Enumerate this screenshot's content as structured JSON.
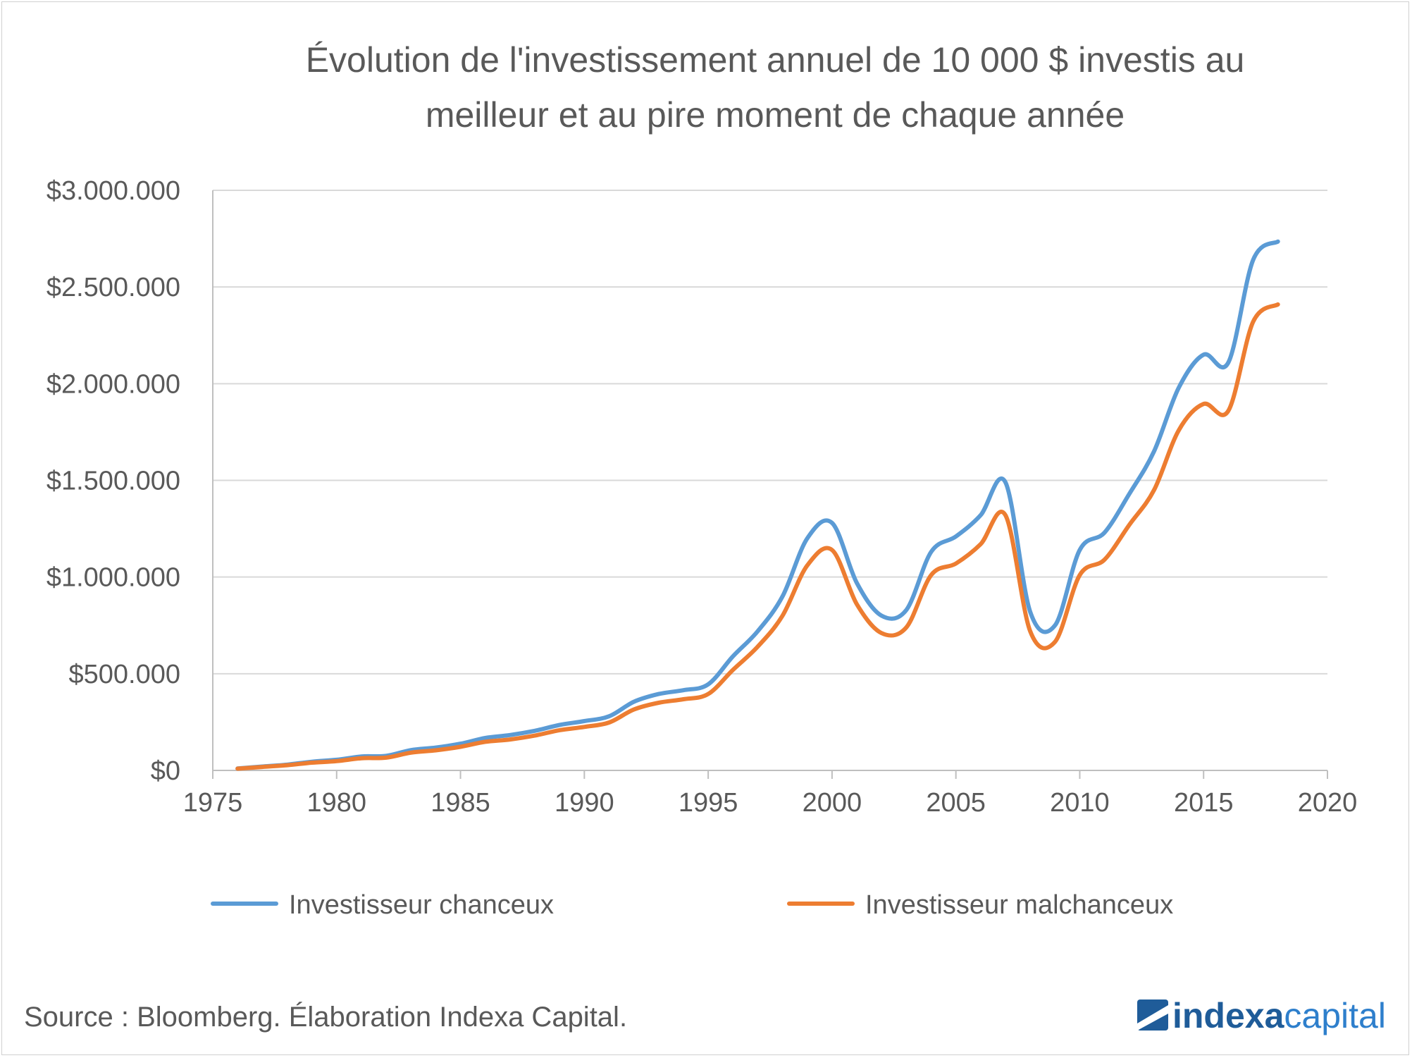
{
  "chart_data": {
    "type": "line",
    "title": "Évolution de l'investissement annuel de 10 000 $ investis au meilleur et au pire moment de chaque année",
    "title_lines": [
      "Évolution de l'investissement annuel de 10 000 $ investis au",
      "meilleur et au pire moment de chaque année"
    ],
    "xlabel": "",
    "ylabel": "",
    "xlim": [
      1975,
      2020
    ],
    "ylim": [
      0,
      3000000
    ],
    "x_ticks": [
      1975,
      1980,
      1985,
      1990,
      1995,
      2000,
      2005,
      2010,
      2015,
      2020
    ],
    "y_ticks": [
      0,
      500000,
      1000000,
      1500000,
      2000000,
      2500000,
      3000000
    ],
    "y_tick_labels": [
      "$0",
      "$500.000",
      "$1.000.000",
      "$1.500.000",
      "$2.000.000",
      "$2.500.000",
      "$3.000.000"
    ],
    "x_tick_labels": [
      "1975",
      "1980",
      "1985",
      "1990",
      "1995",
      "2000",
      "2005",
      "2010",
      "2015",
      "2020"
    ],
    "grid": true,
    "legend_position": "bottom",
    "series": [
      {
        "name": "Investisseur chanceux",
        "color": "#5B9BD5",
        "x": [
          1976,
          1977,
          1978,
          1979,
          1980,
          1981,
          1982,
          1983,
          1984,
          1985,
          1986,
          1987,
          1988,
          1989,
          1990,
          1991,
          1992,
          1993,
          1994,
          1995,
          1996,
          1997,
          1998,
          1999,
          2000,
          2001,
          2002,
          2003,
          2004,
          2005,
          2006,
          2007,
          2008,
          2009,
          2010,
          2011,
          2012,
          2013,
          2014,
          2015,
          2016,
          2017,
          2018
        ],
        "values": [
          10000,
          20000,
          30000,
          45000,
          55000,
          72000,
          75000,
          105000,
          118000,
          138000,
          168000,
          183000,
          205000,
          235000,
          255000,
          280000,
          355000,
          395000,
          415000,
          445000,
          590000,
          720000,
          900000,
          1200000,
          1280000,
          970000,
          800000,
          830000,
          1130000,
          1210000,
          1320000,
          1490000,
          820000,
          750000,
          1140000,
          1230000,
          1430000,
          1650000,
          1980000,
          2150000,
          2110000,
          2640000,
          2735000
        ]
      },
      {
        "name": "Investisseur malchanceux",
        "color": "#ED7D31",
        "x": [
          1976,
          1977,
          1978,
          1979,
          1980,
          1981,
          1982,
          1983,
          1984,
          1985,
          1986,
          1987,
          1988,
          1989,
          1990,
          1991,
          1992,
          1993,
          1994,
          1995,
          1996,
          1997,
          1998,
          1999,
          2000,
          2001,
          2002,
          2003,
          2004,
          2005,
          2006,
          2007,
          2008,
          2009,
          2010,
          2011,
          2012,
          2013,
          2014,
          2015,
          2016,
          2017,
          2018
        ],
        "values": [
          9000,
          18000,
          27000,
          40000,
          48000,
          63000,
          66000,
          92000,
          104000,
          122000,
          148000,
          160000,
          180000,
          208000,
          225000,
          248000,
          315000,
          350000,
          368000,
          395000,
          520000,
          640000,
          800000,
          1060000,
          1140000,
          860000,
          710000,
          740000,
          1010000,
          1070000,
          1170000,
          1320000,
          720000,
          665000,
          1010000,
          1090000,
          1270000,
          1450000,
          1760000,
          1895000,
          1860000,
          2320000,
          2410000
        ]
      }
    ]
  },
  "source": "Source : Bloomberg. Élaboration Indexa Capital.",
  "logo": {
    "part1": "indexa",
    "part2": "capital",
    "color1": "#1F5C99",
    "color2": "#2E7FCC"
  }
}
